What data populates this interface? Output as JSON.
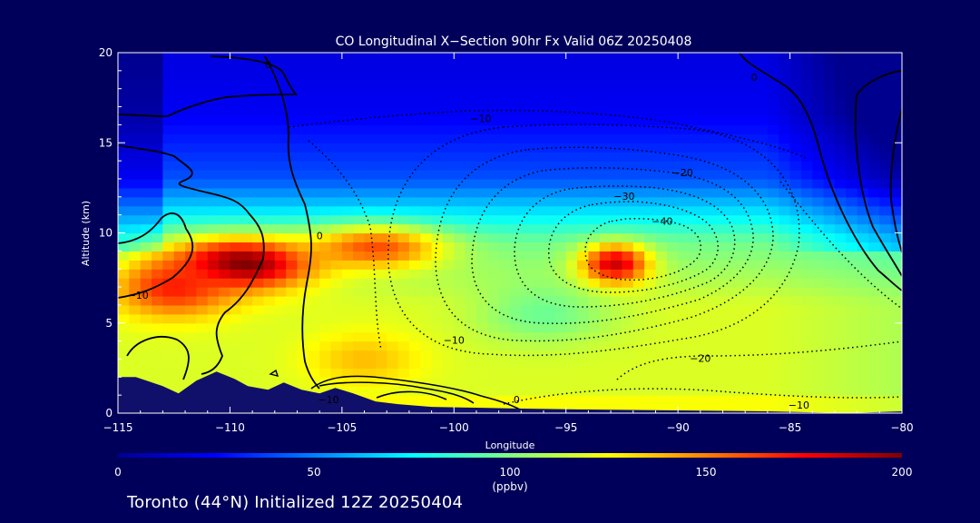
{
  "chart_data": {
    "type": "heatmap",
    "title": "CO Longitudinal X−Section 90hr  Fx Valid 06Z 20250408",
    "xlabel": "Longitude",
    "ylabel": "Altitude (km)",
    "xlim": [
      -115,
      -80
    ],
    "ylim": [
      0,
      20
    ],
    "x_ticks": [
      -115,
      -110,
      -105,
      -100,
      -95,
      -90,
      -85,
      -80
    ],
    "x_tick_labels": [
      "−115",
      "−110",
      "−105",
      "−100",
      "−95",
      "−90",
      "−85",
      "−80"
    ],
    "y_ticks": [
      0,
      5,
      10,
      15,
      20
    ],
    "y_tick_labels": [
      "0",
      "5",
      "10",
      "15",
      "20"
    ],
    "colorbar": {
      "min": 0,
      "max": 200,
      "ticks": [
        0,
        50,
        100,
        150,
        200
      ],
      "tick_labels": [
        "0",
        "50",
        "100",
        "150",
        "200"
      ],
      "units": "(ppbv)",
      "colormap": "jet"
    },
    "co_blobs": [
      {
        "lon": -109.5,
        "alt": 8.3,
        "value": 205,
        "sx": 3.2,
        "sy": 1.4
      },
      {
        "lon": -112.5,
        "alt": 7.0,
        "value": 170,
        "sx": 2.6,
        "sy": 1.6
      },
      {
        "lon": -103.5,
        "alt": 9.2,
        "value": 160,
        "sx": 3.0,
        "sy": 1.2
      },
      {
        "lon": -92.8,
        "alt": 8.3,
        "value": 185,
        "sx": 1.5,
        "sy": 1.1
      }
    ],
    "contour_labels": [
      {
        "text": "0",
        "lon": -108.3,
        "alt": 19.3
      },
      {
        "text": "−10",
        "lon": -98.8,
        "alt": 16.3
      },
      {
        "text": "−20",
        "lon": -89.8,
        "alt": 13.3
      },
      {
        "text": "−30",
        "lon": -92.4,
        "alt": 12.0
      },
      {
        "text": "−40",
        "lon": -90.7,
        "alt": 10.6
      },
      {
        "text": "0",
        "lon": -106.0,
        "alt": 9.8
      },
      {
        "text": "−10",
        "lon": -114.1,
        "alt": 6.5
      },
      {
        "text": "−10",
        "lon": -100.0,
        "alt": 4.0
      },
      {
        "text": "−20",
        "lon": -89.0,
        "alt": 3.0
      },
      {
        "text": "−10",
        "lon": -105.6,
        "alt": 0.7
      },
      {
        "text": "0",
        "lon": -97.2,
        "alt": 0.7
      },
      {
        "text": "−10",
        "lon": -84.6,
        "alt": 0.4
      },
      {
        "text": "0",
        "lon": -86.6,
        "alt": 18.6
      }
    ]
  },
  "footer": "Toronto (44°N) Initialized 12Z 20250404",
  "colors": {
    "background": "#00005a",
    "terrain": "#10106a",
    "contour": "#000000"
  }
}
